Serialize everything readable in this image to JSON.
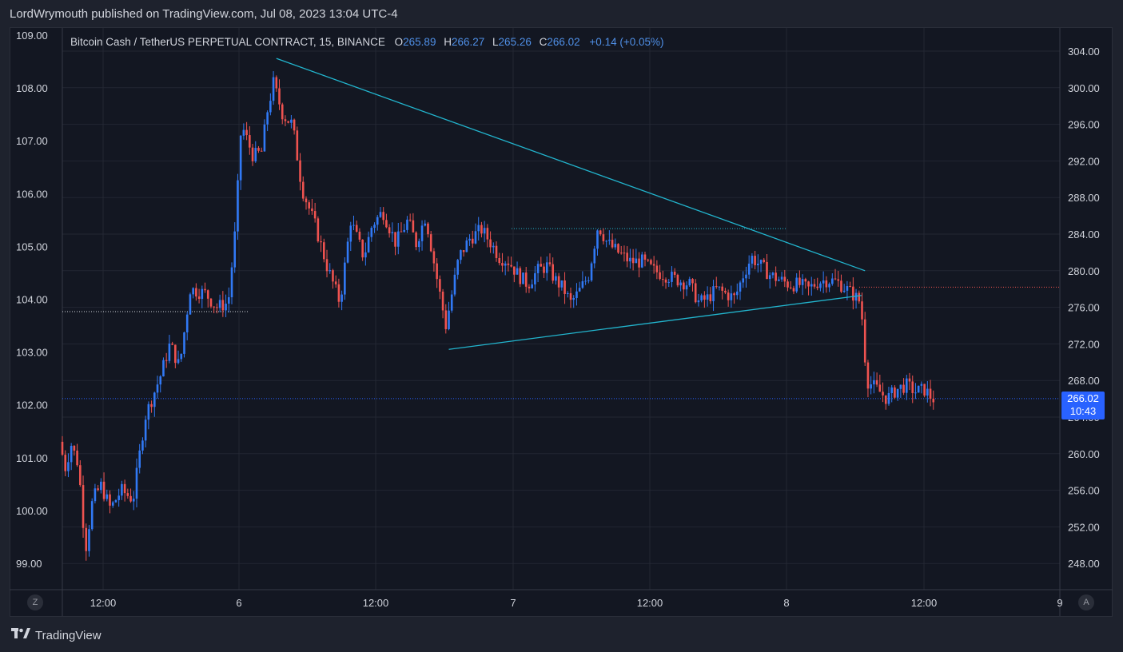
{
  "header": {
    "publisher_text": "LordWrymouth published on TradingView.com, Jul 08, 2023 13:04 UTC-4"
  },
  "legend": {
    "symbol": "Bitcoin Cash / TetherUS PERPETUAL CONTRACT, 15, BINANCE",
    "o_label": "O",
    "o_value": "265.89",
    "h_label": "H",
    "h_value": "266.27",
    "l_label": "L",
    "l_value": "265.26",
    "c_label": "C",
    "c_value": "266.02",
    "change": "+0.14 (+0.05%)"
  },
  "price_tag": {
    "price": "266.02",
    "countdown": "10:43"
  },
  "buttons": {
    "z": "Z",
    "a": "A"
  },
  "footer": {
    "brand": "TradingView"
  },
  "colors": {
    "up": "#3179f5",
    "down": "#ef5350",
    "trendline": "#22b5ce",
    "background": "#131722",
    "grid": "#232733"
  },
  "chart_data": {
    "type": "candlestick",
    "title": "Bitcoin Cash / TetherUS PERPETUAL CONTRACT, 15, BINANCE",
    "left_axis_ticks": [
      "109.00",
      "108.00",
      "107.00",
      "106.00",
      "105.00",
      "104.00",
      "103.00",
      "102.00",
      "101.00",
      "100.00",
      "99.00"
    ],
    "right_axis_ticks": [
      "304.00",
      "300.00",
      "296.00",
      "292.00",
      "288.00",
      "284.00",
      "280.00",
      "276.00",
      "272.00",
      "268.00",
      "264.00",
      "260.00",
      "256.00",
      "252.00",
      "248.00"
    ],
    "x_ticks": [
      "12:00",
      "6",
      "12:00",
      "7",
      "12:00",
      "8",
      "12:00",
      "9"
    ],
    "right_ylim": [
      244.4,
      306.0
    ],
    "grid": true,
    "price_path": [
      {
        "t": 0,
        "p": 261.3
      },
      {
        "t": 0.5,
        "p": 258.5
      },
      {
        "t": 1,
        "p": 261.0
      },
      {
        "t": 1.6,
        "p": 258.8
      },
      {
        "t": 2.2,
        "p": 249.5
      },
      {
        "t": 2.8,
        "p": 255.0
      },
      {
        "t": 3.5,
        "p": 256.5
      },
      {
        "t": 4.3,
        "p": 254.0
      },
      {
        "t": 5.2,
        "p": 256.0
      },
      {
        "t": 6.2,
        "p": 255.0
      },
      {
        "t": 7.2,
        "p": 264.0
      },
      {
        "t": 8.5,
        "p": 268.5
      },
      {
        "t": 9.3,
        "p": 272.0
      },
      {
        "t": 10.1,
        "p": 269.5
      },
      {
        "t": 11.0,
        "p": 278.0
      },
      {
        "t": 12.3,
        "p": 277.5
      },
      {
        "t": 13.2,
        "p": 276.0
      },
      {
        "t": 14.2,
        "p": 276.5
      },
      {
        "t": 14.8,
        "p": 284.5
      },
      {
        "t": 15.3,
        "p": 296.0
      },
      {
        "t": 16.3,
        "p": 292.5
      },
      {
        "t": 17.0,
        "p": 293.0
      },
      {
        "t": 17.5,
        "p": 297.5
      },
      {
        "t": 18.0,
        "p": 300.5
      },
      {
        "t": 18.8,
        "p": 297.0
      },
      {
        "t": 19.6,
        "p": 296.0
      },
      {
        "t": 20.4,
        "p": 289.0
      },
      {
        "t": 21.5,
        "p": 285.0
      },
      {
        "t": 22.5,
        "p": 280.5
      },
      {
        "t": 23.6,
        "p": 276.5
      },
      {
        "t": 24.5,
        "p": 285.5
      },
      {
        "t": 25.6,
        "p": 281.5
      },
      {
        "t": 26.3,
        "p": 285.0
      },
      {
        "t": 27.2,
        "p": 286.5
      },
      {
        "t": 28.3,
        "p": 283.0
      },
      {
        "t": 29.3,
        "p": 285.5
      },
      {
        "t": 30.0,
        "p": 283.0
      },
      {
        "t": 30.8,
        "p": 286.0
      },
      {
        "t": 31.7,
        "p": 279.5
      },
      {
        "t": 32.5,
        "p": 274.0
      },
      {
        "t": 33.6,
        "p": 281.5
      },
      {
        "t": 34.5,
        "p": 283.5
      },
      {
        "t": 35.5,
        "p": 284.5
      },
      {
        "t": 36.3,
        "p": 283.0
      },
      {
        "t": 37.0,
        "p": 281.5
      },
      {
        "t": 37.8,
        "p": 281.0
      },
      {
        "t": 38.6,
        "p": 279.5
      },
      {
        "t": 39.4,
        "p": 278.5
      },
      {
        "t": 40.2,
        "p": 280.0
      },
      {
        "t": 41.0,
        "p": 280.5
      },
      {
        "t": 41.7,
        "p": 279.0
      },
      {
        "t": 42.4,
        "p": 278.0
      },
      {
        "t": 43.0,
        "p": 276.5
      },
      {
        "t": 43.6,
        "p": 277.5
      },
      {
        "t": 44.5,
        "p": 279.5
      },
      {
        "t": 45.3,
        "p": 285.0
      },
      {
        "t": 46.1,
        "p": 283.0
      },
      {
        "t": 47.0,
        "p": 282.0
      },
      {
        "t": 48.0,
        "p": 281.0
      },
      {
        "t": 49.0,
        "p": 281.0
      },
      {
        "t": 50.0,
        "p": 280.0
      },
      {
        "t": 51.0,
        "p": 279.5
      },
      {
        "t": 52.0,
        "p": 279.0
      },
      {
        "t": 53.0,
        "p": 278.5
      },
      {
        "t": 53.8,
        "p": 276.5
      },
      {
        "t": 54.5,
        "p": 277.0
      },
      {
        "t": 55.3,
        "p": 278.0
      },
      {
        "t": 56.0,
        "p": 277.5
      },
      {
        "t": 56.8,
        "p": 277.0
      },
      {
        "t": 57.5,
        "p": 279.5
      },
      {
        "t": 58.2,
        "p": 281.5
      },
      {
        "t": 59.0,
        "p": 280.5
      },
      {
        "t": 59.8,
        "p": 279.5
      },
      {
        "t": 60.6,
        "p": 279.0
      },
      {
        "t": 61.4,
        "p": 278.5
      },
      {
        "t": 62.2,
        "p": 278.5
      },
      {
        "t": 63.0,
        "p": 278.0
      },
      {
        "t": 63.8,
        "p": 278.8
      },
      {
        "t": 64.6,
        "p": 279.0
      },
      {
        "t": 65.4,
        "p": 278.8
      },
      {
        "t": 66.2,
        "p": 278.0
      },
      {
        "t": 66.9,
        "p": 277.2
      },
      {
        "t": 67.4,
        "p": 276.5
      },
      {
        "t": 67.9,
        "p": 268.0
      },
      {
        "t": 68.8,
        "p": 267.0
      },
      {
        "t": 69.6,
        "p": 266.0
      },
      {
        "t": 70.4,
        "p": 267.0
      },
      {
        "t": 71.2,
        "p": 267.5
      },
      {
        "t": 72.0,
        "p": 266.8
      },
      {
        "t": 72.8,
        "p": 267.0
      },
      {
        "t": 73.4,
        "p": 266.0
      }
    ],
    "trendlines": [
      {
        "name": "upper",
        "from": {
          "t": 18.0,
          "p": 303.2
        },
        "to": {
          "t": 67.5,
          "p": 280.0
        }
      },
      {
        "name": "lower",
        "from": {
          "t": 32.5,
          "p": 271.4
        },
        "to": {
          "t": 67.2,
          "p": 277.3
        }
      }
    ],
    "dotted_levels": [
      284.6,
      278.2,
      266.02
    ],
    "last_price": 266.02
  }
}
